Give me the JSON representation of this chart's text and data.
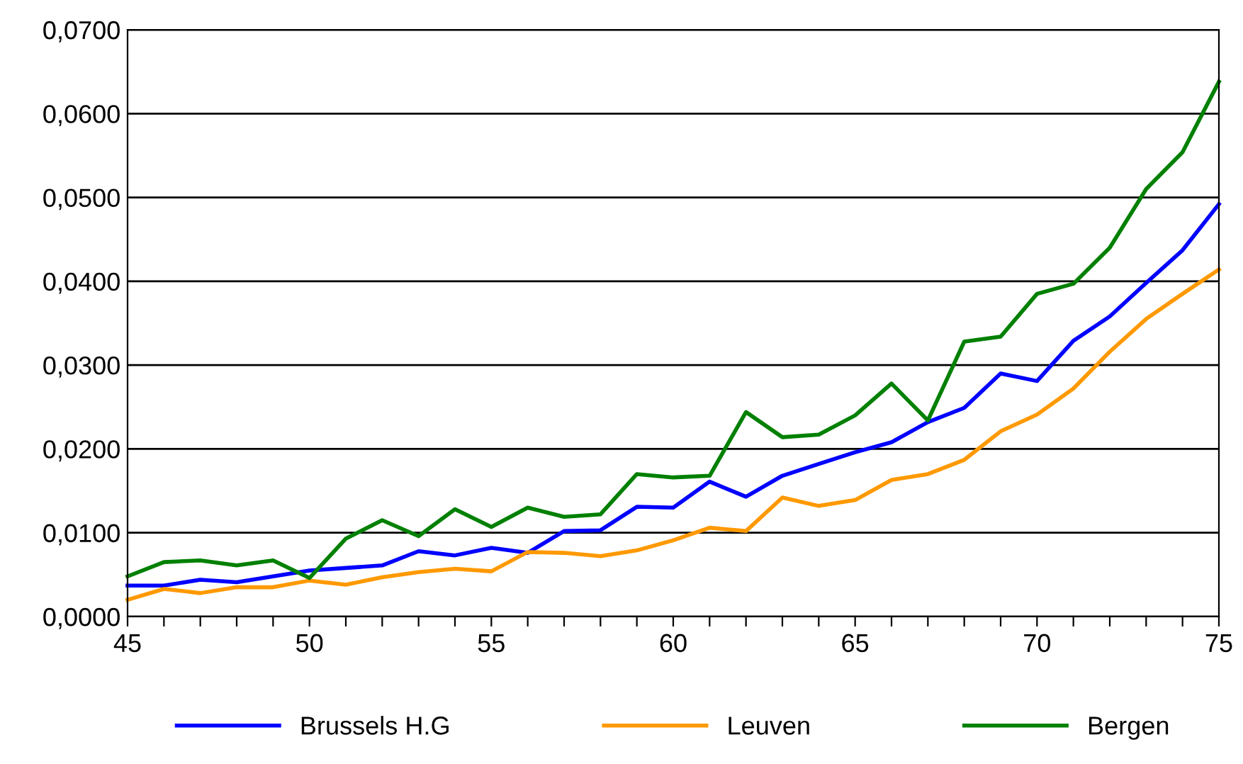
{
  "chart_data": {
    "type": "line",
    "x": [
      45,
      46,
      47,
      48,
      49,
      50,
      51,
      52,
      53,
      54,
      55,
      56,
      57,
      58,
      59,
      60,
      61,
      62,
      63,
      64,
      65,
      66,
      67,
      68,
      69,
      70,
      71,
      72,
      73,
      74,
      75
    ],
    "series": [
      {
        "name": "Brussels H.G",
        "color": "#0000ff",
        "values": [
          0.0037,
          0.0037,
          0.0044,
          0.0041,
          0.0048,
          0.0055,
          0.0058,
          0.0061,
          0.0078,
          0.0073,
          0.0082,
          0.0076,
          0.0102,
          0.0103,
          0.0131,
          0.013,
          0.0161,
          0.0143,
          0.0168,
          0.0182,
          0.0196,
          0.0208,
          0.0232,
          0.0249,
          0.029,
          0.0281,
          0.0329,
          0.0358,
          0.0398,
          0.0437,
          0.0492
        ]
      },
      {
        "name": "Leuven",
        "color": "#ff9900",
        "values": [
          0.002,
          0.0033,
          0.0028,
          0.0035,
          0.0035,
          0.0043,
          0.0038,
          0.0047,
          0.0053,
          0.0057,
          0.0054,
          0.0077,
          0.0076,
          0.0072,
          0.0079,
          0.0091,
          0.0106,
          0.0102,
          0.0142,
          0.0132,
          0.0139,
          0.0163,
          0.017,
          0.0187,
          0.0221,
          0.0241,
          0.0272,
          0.0316,
          0.0355,
          0.0385,
          0.0414
        ]
      },
      {
        "name": "Bergen",
        "color": "#008000",
        "values": [
          0.0048,
          0.0065,
          0.0067,
          0.0061,
          0.0067,
          0.0046,
          0.0093,
          0.0115,
          0.0096,
          0.0128,
          0.0107,
          0.013,
          0.0119,
          0.0122,
          0.017,
          0.0166,
          0.0168,
          0.0244,
          0.0214,
          0.0217,
          0.024,
          0.0278,
          0.0234,
          0.0328,
          0.0334,
          0.0385,
          0.0397,
          0.044,
          0.051,
          0.0554,
          0.0638
        ]
      }
    ],
    "xlim": [
      45,
      75
    ],
    "ylim": [
      0,
      0.07
    ],
    "xticks": [
      45,
      {
        "value": 46,
        "label": null
      },
      {
        "value": 47,
        "label": null
      },
      {
        "value": 48,
        "label": null
      },
      {
        "value": 49,
        "label": null
      },
      50,
      {
        "value": 51,
        "label": null
      },
      {
        "value": 52,
        "label": null
      },
      {
        "value": 53,
        "label": null
      },
      {
        "value": 54,
        "label": null
      },
      55,
      {
        "value": 56,
        "label": null
      },
      {
        "value": 57,
        "label": null
      },
      {
        "value": 58,
        "label": null
      },
      {
        "value": 59,
        "label": null
      },
      60,
      {
        "value": 61,
        "label": null
      },
      {
        "value": 62,
        "label": null
      },
      {
        "value": 63,
        "label": null
      },
      {
        "value": 64,
        "label": null
      },
      65,
      {
        "value": 66,
        "label": null
      },
      {
        "value": 67,
        "label": null
      },
      {
        "value": 68,
        "label": null
      },
      {
        "value": 69,
        "label": null
      },
      70,
      {
        "value": 71,
        "label": null
      },
      {
        "value": 72,
        "label": null
      },
      {
        "value": 73,
        "label": null
      },
      {
        "value": 74,
        "label": null
      },
      75
    ],
    "yticks": [
      {
        "value": 0,
        "label": "0,0000"
      },
      {
        "value": 0.01,
        "label": "0,0100"
      },
      {
        "value": 0.02,
        "label": "0,0200"
      },
      {
        "value": 0.03,
        "label": "0,0300"
      },
      {
        "value": 0.04,
        "label": "0,0400"
      },
      {
        "value": 0.05,
        "label": "0,0500"
      },
      {
        "value": 0.06,
        "label": "0,0600"
      },
      {
        "value": 0.07,
        "label": "0,0700"
      }
    ],
    "grid": "y",
    "legend": "bottom",
    "marker": "none",
    "line_style": "solid"
  }
}
